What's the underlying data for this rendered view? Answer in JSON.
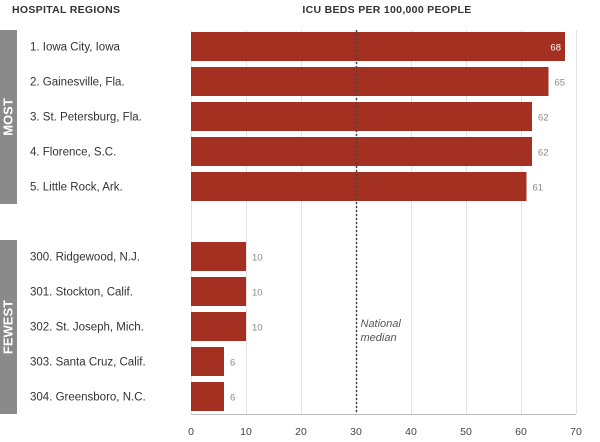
{
  "header": {
    "left": "HOSPITAL REGIONS",
    "right": "ICU BEDS PER 100,000 PEOPLE"
  },
  "chart_data": {
    "type": "bar",
    "orientation": "horizontal",
    "xlabel": "ICU BEDS PER 100,000 PEOPLE",
    "ylabel": "HOSPITAL REGIONS",
    "xlim": [
      0,
      70
    ],
    "xticks": [
      0,
      10,
      20,
      30,
      40,
      50,
      60,
      70
    ],
    "bar_color": "#a33020",
    "group_color": "#8a8a8a",
    "groups": [
      {
        "name": "MOST",
        "rows": [
          {
            "label": "1. Iowa City, Iowa",
            "value": 68
          },
          {
            "label": "2. Gainesville, Fla.",
            "value": 65
          },
          {
            "label": "3. St. Petersburg, Fla.",
            "value": 62
          },
          {
            "label": "4. Florence, S.C.",
            "value": 62
          },
          {
            "label": "5. Little Rock, Ark.",
            "value": 61
          }
        ]
      },
      {
        "name": "FEWEST",
        "rows": [
          {
            "label": "300. Ridgewood, N.J.",
            "value": 10
          },
          {
            "label": "301. Stockton, Calif.",
            "value": 10
          },
          {
            "label": "302. St. Joseph, Mich.",
            "value": 10
          },
          {
            "label": "303. Santa Cruz, Calif.",
            "value": 6
          },
          {
            "label": "304. Greensboro, N.C.",
            "value": 6
          }
        ]
      }
    ],
    "reference_line": {
      "value": 30,
      "label_lines": [
        "National",
        "median"
      ]
    }
  }
}
